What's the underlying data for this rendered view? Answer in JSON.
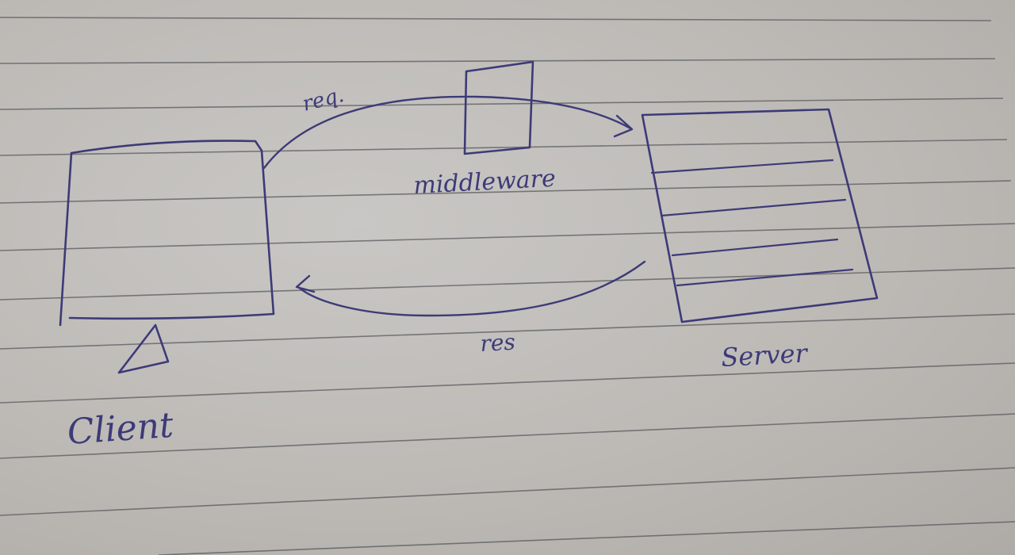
{
  "labels": {
    "request": "req.",
    "middleware": "middleware",
    "response": "res",
    "server": "Server",
    "client": "Client"
  },
  "colors": {
    "ink": "#3d3a78",
    "paper": "#c2bfbb",
    "rule_line": "#5a5a5e"
  }
}
